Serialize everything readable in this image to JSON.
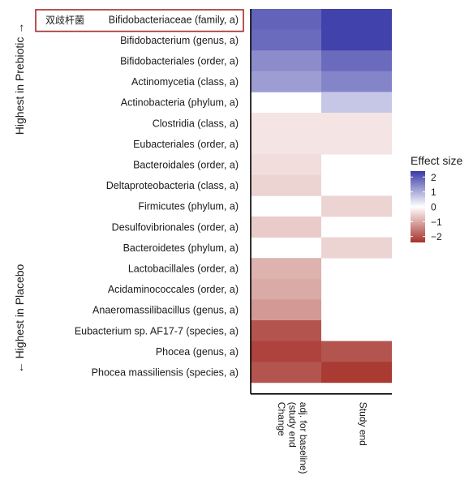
{
  "chart_data": {
    "type": "heatmap",
    "rows": [
      "Bifidobacteriaceae (family, a)",
      "Bifidobacterium (genus, a)",
      "Bifidobacteriales (order, a)",
      "Actinomycetia (class, a)",
      "Actinobacteria (phylum, a)",
      "Clostridia (class, a)",
      "Eubacteriales (order, a)",
      "Bacteroidales (order, a)",
      "Deltaproteobacteria (class, a)",
      "Firmicutes (phylum, a)",
      "Desulfovibrionales (order, a)",
      "Bacteroidetes (phylum, a)",
      "Lactobacillales (order, a)",
      "Acidaminococcales (order, a)",
      "Anaeromassilibacillus (genus, a)",
      "Eubacterium sp. AF17-7 (species, a)",
      "Phocea (genus, a)",
      "Phocea massiliensis (species, a)"
    ],
    "columns": [
      "Change\n(study end\nadj. for baseline)",
      "Study end"
    ],
    "values": [
      [
        1.9,
        2.3
      ],
      [
        1.8,
        2.3
      ],
      [
        1.4,
        1.8
      ],
      [
        1.2,
        1.5
      ],
      [
        null,
        0.7
      ],
      [
        -0.3,
        -0.3
      ],
      [
        -0.3,
        -0.3
      ],
      [
        -0.4,
        null
      ],
      [
        -0.5,
        null
      ],
      [
        null,
        -0.5
      ],
      [
        -0.6,
        null
      ],
      [
        null,
        -0.5
      ],
      [
        -0.9,
        null
      ],
      [
        -1.0,
        null
      ],
      [
        -1.2,
        null
      ],
      [
        -2.0,
        null
      ],
      [
        -2.2,
        -2.0
      ],
      [
        -2.0,
        -2.3
      ]
    ],
    "group_labels": {
      "top": "Highest in Prebiotic →",
      "bottom": "← Highest in Placebo"
    },
    "legend": {
      "title": "Effect size",
      "ticks": [
        2,
        1,
        0,
        -1,
        -2
      ],
      "tick_labels": [
        "2",
        "1",
        "0",
        "−1",
        "−2"
      ],
      "range": [
        -2.4,
        2.4
      ]
    },
    "colors": {
      "high": "#3a3aa8",
      "mid": "#ffffff",
      "low": "#a5322a",
      "highlight_border": "#a52a2a"
    },
    "annotation": {
      "row_index": 0,
      "prefix": "双歧杆菌"
    }
  }
}
